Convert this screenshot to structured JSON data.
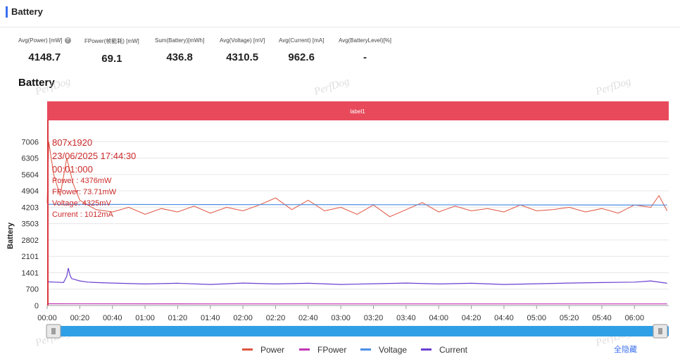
{
  "section": {
    "title": "Battery"
  },
  "stats": [
    {
      "label": "Avg(Power) [mW]",
      "value": "4148.7",
      "help": true,
      "help_glyph": "?"
    },
    {
      "label": "FPower(帧能耗) [mW]",
      "value": "69.1"
    },
    {
      "label": "Sum(Battery)[mWh]",
      "value": "436.8"
    },
    {
      "label": "Avg(Voltage) [mV]",
      "value": "4310.5"
    },
    {
      "label": "Avg(Current) [mA]",
      "value": "962.6"
    },
    {
      "label": "Avg(BatteryLevel)[%]",
      "value": "-"
    }
  ],
  "watermark": "PerfDog",
  "toggle_all_label": "全隐藏",
  "chart_data": {
    "type": "line",
    "title": "Battery",
    "ylabel": "Battery",
    "xlabel": "",
    "band_label": "label1",
    "ylim": [
      0,
      7707
    ],
    "xlim_seconds": [
      0,
      381
    ],
    "y_ticks": [
      0,
      700,
      1401,
      2101,
      2802,
      3503,
      4203,
      4904,
      5604,
      6305,
      7006
    ],
    "x_ticks": [
      "00:00",
      "00:20",
      "00:40",
      "01:00",
      "01:20",
      "01:40",
      "02:00",
      "02:20",
      "02:40",
      "03:00",
      "03:20",
      "03:40",
      "04:00",
      "04:20",
      "04:40",
      "05:00",
      "05:20",
      "05:40",
      "06:00"
    ],
    "grid": true,
    "legend": "bottom",
    "tooltip": {
      "lines": [
        "807x1920",
        "23/06/2025 17:44:30",
        "00:01:000"
      ],
      "values": [
        "Power  : 4376mW",
        "FPower: 73.71mW",
        "Voltage: 4325mV",
        "Current : 1012mA"
      ]
    },
    "series": [
      {
        "name": "Power",
        "color": "#e0533f",
        "x_seconds": [
          0,
          1,
          4,
          8,
          12,
          16,
          20,
          25,
          30,
          40,
          50,
          60,
          70,
          80,
          90,
          100,
          110,
          120,
          130,
          140,
          150,
          160,
          170,
          180,
          190,
          200,
          210,
          220,
          230,
          240,
          250,
          260,
          270,
          280,
          290,
          300,
          310,
          320,
          330,
          340,
          350,
          360,
          370,
          375,
          380
        ],
        "values": [
          4376,
          7000,
          5600,
          4700,
          6300,
          5200,
          4500,
          4300,
          4100,
          4000,
          4200,
          3900,
          4150,
          4000,
          4250,
          3950,
          4200,
          4050,
          4300,
          4600,
          4100,
          4500,
          4050,
          4200,
          3900,
          4300,
          3800,
          4100,
          4400,
          4000,
          4250,
          4050,
          4150,
          4000,
          4300,
          4050,
          4100,
          4200,
          4000,
          4150,
          3950,
          4300,
          4200,
          4700,
          4050
        ]
      },
      {
        "name": "FPower",
        "color": "#c335b6",
        "x_seconds": [
          0,
          100,
          200,
          300,
          380
        ],
        "values": [
          74,
          70,
          69,
          68,
          68
        ]
      },
      {
        "name": "Voltage",
        "color": "#4a8ee6",
        "x_seconds": [
          0,
          100,
          200,
          300,
          380
        ],
        "values": [
          4325,
          4318,
          4310,
          4303,
          4296
        ]
      },
      {
        "name": "Current",
        "color": "#6a3fd0",
        "x_seconds": [
          0,
          5,
          10,
          12,
          13,
          14,
          15,
          20,
          25,
          30,
          40,
          60,
          80,
          100,
          120,
          140,
          160,
          180,
          200,
          220,
          240,
          260,
          280,
          300,
          320,
          340,
          360,
          370,
          380
        ],
        "values": [
          1012,
          1000,
          980,
          1250,
          1600,
          1300,
          1150,
          1050,
          1000,
          980,
          960,
          920,
          950,
          900,
          960,
          920,
          950,
          900,
          930,
          960,
          920,
          950,
          900,
          930,
          960,
          980,
          1000,
          1050,
          950
        ]
      }
    ]
  }
}
